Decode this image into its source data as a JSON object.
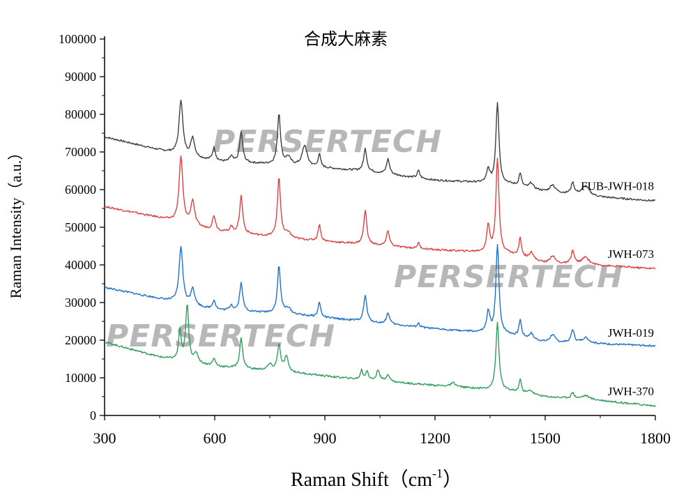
{
  "chart_data": {
    "type": "line",
    "title": "合成大麻素",
    "xlabel": "Raman Shift（cm",
    "xlabel_sup": "-1",
    "xlabel_tail": "）",
    "ylabel": "Raman Intensity（a.u.）",
    "xlim": [
      300,
      1800
    ],
    "ylim": [
      0,
      100000
    ],
    "x_ticks": [
      300,
      600,
      900,
      1200,
      1500,
      1800
    ],
    "x_tick_labels": [
      "300",
      "600",
      "900",
      "1200",
      "1500",
      "1800"
    ],
    "y_ticks": [
      0,
      10000,
      20000,
      30000,
      40000,
      50000,
      60000,
      70000,
      80000,
      90000,
      100000
    ],
    "y_tick_labels": [
      "0",
      "10000",
      "20000",
      "30000",
      "40000",
      "50000",
      "60000",
      "70000",
      "80000",
      "90000",
      "100000"
    ],
    "watermark": "PERSERTECH",
    "series": [
      {
        "name": "FUB-JWH-018",
        "color": "#3f3f3f",
        "baseline": [
          [
            300,
            74000
          ],
          [
            450,
            70500
          ],
          [
            600,
            67500
          ],
          [
            800,
            66500
          ],
          [
            1000,
            65000
          ],
          [
            1200,
            62500
          ],
          [
            1400,
            61500
          ],
          [
            1500,
            59500
          ],
          [
            1650,
            58000
          ],
          [
            1800,
            57000
          ]
        ],
        "peaks": [
          [
            508,
            14500,
            6
          ],
          [
            540,
            5000,
            6
          ],
          [
            598,
            3500,
            5
          ],
          [
            645,
            1500,
            5
          ],
          [
            672,
            8000,
            5
          ],
          [
            775,
            13500,
            5
          ],
          [
            800,
            2000,
            8
          ],
          [
            845,
            5500,
            8
          ],
          [
            885,
            3500,
            4
          ],
          [
            1010,
            6000,
            5
          ],
          [
            1072,
            4000,
            5
          ],
          [
            1155,
            2000,
            4
          ],
          [
            1345,
            3500,
            5
          ],
          [
            1370,
            21500,
            5
          ],
          [
            1432,
            3500,
            4
          ],
          [
            1462,
            1500,
            6
          ],
          [
            1520,
            2000,
            8
          ],
          [
            1575,
            3000,
            5
          ],
          [
            1610,
            2500,
            12
          ]
        ],
        "label_value": 61000
      },
      {
        "name": "JWH-073",
        "color": "#e04040",
        "baseline": [
          [
            300,
            55500
          ],
          [
            450,
            52500
          ],
          [
            600,
            49000
          ],
          [
            800,
            47000
          ],
          [
            1000,
            45500
          ],
          [
            1200,
            44000
          ],
          [
            1400,
            43000
          ],
          [
            1500,
            40500
          ],
          [
            1650,
            39800
          ],
          [
            1800,
            39000
          ]
        ],
        "peaks": [
          [
            508,
            17500,
            6
          ],
          [
            540,
            6500,
            6
          ],
          [
            598,
            4000,
            5
          ],
          [
            645,
            1500,
            5
          ],
          [
            672,
            10000,
            5
          ],
          [
            775,
            16000,
            5
          ],
          [
            800,
            1500,
            8
          ],
          [
            885,
            4500,
            4
          ],
          [
            1010,
            9000,
            5
          ],
          [
            1072,
            4000,
            5
          ],
          [
            1155,
            1500,
            4
          ],
          [
            1345,
            7000,
            5
          ],
          [
            1370,
            25000,
            5
          ],
          [
            1432,
            5000,
            4
          ],
          [
            1462,
            2000,
            6
          ],
          [
            1520,
            2000,
            8
          ],
          [
            1575,
            3500,
            5
          ],
          [
            1610,
            2000,
            12
          ]
        ],
        "label_value": 43000
      },
      {
        "name": "JWH-019",
        "color": "#1f6fd0",
        "baseline": [
          [
            300,
            34000
          ],
          [
            450,
            31000
          ],
          [
            600,
            28000
          ],
          [
            800,
            27000
          ],
          [
            1000,
            25000
          ],
          [
            1200,
            23000
          ],
          [
            1400,
            21500
          ],
          [
            1500,
            19500
          ],
          [
            1650,
            19000
          ],
          [
            1800,
            18500
          ]
        ],
        "peaks": [
          [
            508,
            15000,
            6
          ],
          [
            540,
            4500,
            6
          ],
          [
            598,
            2500,
            5
          ],
          [
            645,
            1500,
            5
          ],
          [
            672,
            7500,
            5
          ],
          [
            775,
            12500,
            5
          ],
          [
            800,
            1500,
            8
          ],
          [
            885,
            4000,
            4
          ],
          [
            1010,
            7000,
            5
          ],
          [
            1072,
            3000,
            5
          ],
          [
            1155,
            1000,
            4
          ],
          [
            1345,
            5500,
            5
          ],
          [
            1370,
            23500,
            5
          ],
          [
            1432,
            4500,
            4
          ],
          [
            1462,
            1500,
            6
          ],
          [
            1520,
            2000,
            8
          ],
          [
            1575,
            3500,
            5
          ],
          [
            1610,
            1500,
            12
          ]
        ],
        "label_value": 22000
      },
      {
        "name": "JWH-370",
        "color": "#2e9e5a",
        "baseline": [
          [
            300,
            19500
          ],
          [
            450,
            15500
          ],
          [
            600,
            13000
          ],
          [
            800,
            11500
          ],
          [
            1000,
            9500
          ],
          [
            1200,
            8000
          ],
          [
            1400,
            6500
          ],
          [
            1500,
            5000
          ],
          [
            1650,
            4000
          ],
          [
            1800,
            2500
          ]
        ],
        "peaks": [
          [
            505,
            8000,
            4
          ],
          [
            525,
            15000,
            5
          ],
          [
            550,
            2500,
            6
          ],
          [
            598,
            2000,
            5
          ],
          [
            672,
            8000,
            5
          ],
          [
            750,
            1500,
            8
          ],
          [
            775,
            7000,
            5
          ],
          [
            795,
            4000,
            6
          ],
          [
            1000,
            2500,
            4
          ],
          [
            1015,
            2500,
            4
          ],
          [
            1045,
            3000,
            5
          ],
          [
            1072,
            2000,
            5
          ],
          [
            1250,
            1000,
            8
          ],
          [
            1370,
            18000,
            5
          ],
          [
            1432,
            3500,
            4
          ],
          [
            1460,
            1000,
            8
          ],
          [
            1575,
            1500,
            5
          ],
          [
            1610,
            1000,
            12
          ]
        ],
        "label_value": 6500
      }
    ]
  }
}
